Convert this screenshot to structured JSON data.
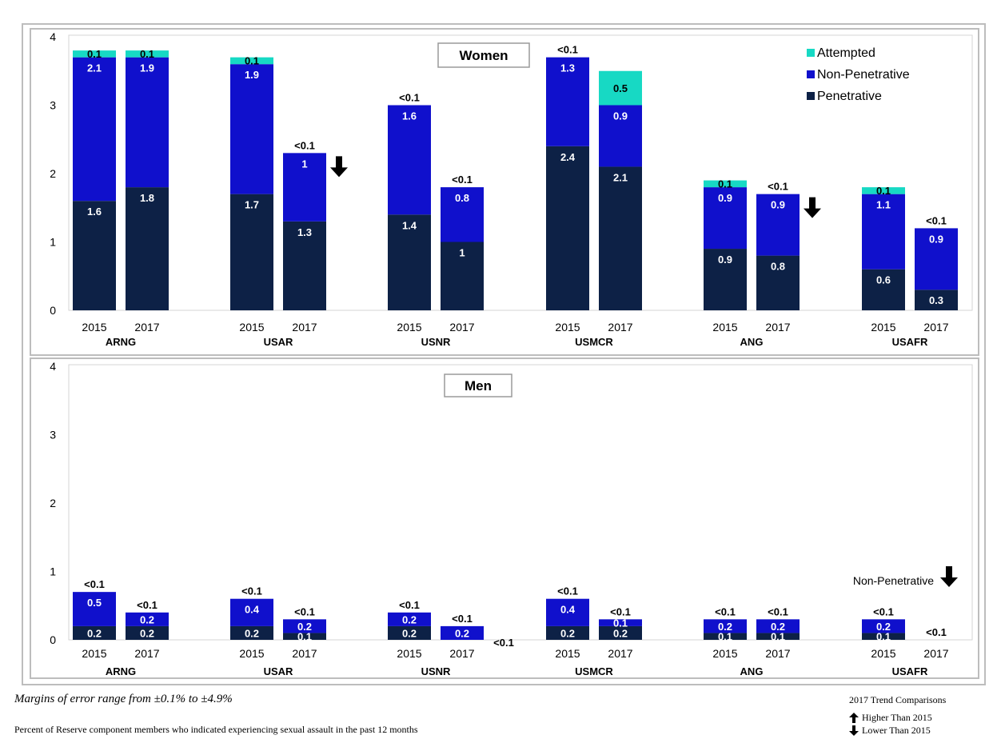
{
  "colors": {
    "attempted": "#17d9c4",
    "non_penetrative": "#1010cc",
    "penetrative": "#0d2146",
    "border": "#bdbdbd",
    "arrow": "#000000"
  },
  "chart_data": [
    {
      "type": "bar",
      "stacked": true,
      "panel_label": "Women",
      "ylim": [
        0,
        4
      ],
      "yticks": [
        "0",
        "1",
        "2",
        "3",
        "4"
      ],
      "legend": {
        "placement": "top-right",
        "entries": [
          {
            "key": "attempted",
            "label": "Attempted"
          },
          {
            "key": "non_penetrative",
            "label": "Non-Penetrative"
          },
          {
            "key": "penetrative",
            "label": "Penetrative"
          }
        ]
      },
      "groups": [
        {
          "name": "ARNG",
          "bars": [
            {
              "year": "2015",
              "values": {
                "penetrative": 1.6,
                "non_penetrative": 2.1,
                "attempted": 0.1
              },
              "labels": {
                "penetrative": "1.6",
                "non_penetrative": "2.1",
                "attempted": "0.1"
              },
              "arrow": ""
            },
            {
              "year": "2017",
              "values": {
                "penetrative": 1.8,
                "non_penetrative": 1.9,
                "attempted": 0.1
              },
              "labels": {
                "penetrative": "1.8",
                "non_penetrative": "1.9",
                "attempted": "0.1"
              },
              "arrow": ""
            }
          ]
        },
        {
          "name": "USAR",
          "bars": [
            {
              "year": "2015",
              "values": {
                "penetrative": 1.7,
                "non_penetrative": 1.9,
                "attempted": 0.1
              },
              "labels": {
                "penetrative": "1.7",
                "non_penetrative": "1.9",
                "attempted": "0.1"
              },
              "arrow": ""
            },
            {
              "year": "2017",
              "values": {
                "penetrative": 1.3,
                "non_penetrative": 1.0,
                "attempted": 0.0
              },
              "labels": {
                "penetrative": "1.3",
                "non_penetrative": "1",
                "attempted": "<0.1"
              },
              "arrow": "down"
            }
          ]
        },
        {
          "name": "USNR",
          "bars": [
            {
              "year": "2015",
              "values": {
                "penetrative": 1.4,
                "non_penetrative": 1.6,
                "attempted": 0.0
              },
              "labels": {
                "penetrative": "1.4",
                "non_penetrative": "1.6",
                "attempted": "<0.1"
              },
              "arrow": ""
            },
            {
              "year": "2017",
              "values": {
                "penetrative": 1.0,
                "non_penetrative": 0.8,
                "attempted": 0.0
              },
              "labels": {
                "penetrative": "1",
                "non_penetrative": "0.8",
                "attempted": "<0.1"
              },
              "arrow": ""
            }
          ]
        },
        {
          "name": "USMCR",
          "bars": [
            {
              "year": "2015",
              "values": {
                "penetrative": 2.4,
                "non_penetrative": 1.3,
                "attempted": 0.0
              },
              "labels": {
                "penetrative": "2.4",
                "non_penetrative": "1.3",
                "attempted": "<0.1"
              },
              "arrow": ""
            },
            {
              "year": "2017",
              "values": {
                "penetrative": 2.1,
                "non_penetrative": 0.9,
                "attempted": 0.5
              },
              "labels": {
                "penetrative": "2.1",
                "non_penetrative": "0.9",
                "attempted": "0.5"
              },
              "arrow": ""
            }
          ]
        },
        {
          "name": "ANG",
          "bars": [
            {
              "year": "2015",
              "values": {
                "penetrative": 0.9,
                "non_penetrative": 0.9,
                "attempted": 0.1
              },
              "labels": {
                "penetrative": "0.9",
                "non_penetrative": "0.9",
                "attempted": "0.1"
              },
              "arrow": ""
            },
            {
              "year": "2017",
              "values": {
                "penetrative": 0.8,
                "non_penetrative": 0.9,
                "attempted": 0.0
              },
              "labels": {
                "penetrative": "0.8",
                "non_penetrative": "0.9",
                "attempted": "<0.1"
              },
              "arrow": "down"
            }
          ]
        },
        {
          "name": "USAFR",
          "bars": [
            {
              "year": "2015",
              "values": {
                "penetrative": 0.6,
                "non_penetrative": 1.1,
                "attempted": 0.1
              },
              "labels": {
                "penetrative": "0.6",
                "non_penetrative": "1.1",
                "attempted": "0.1"
              },
              "arrow": ""
            },
            {
              "year": "2017",
              "values": {
                "penetrative": 0.3,
                "non_penetrative": 0.9,
                "attempted": 0.0
              },
              "labels": {
                "penetrative": "0.3",
                "non_penetrative": "0.9",
                "attempted": "<0.1"
              },
              "arrow": ""
            }
          ]
        }
      ]
    },
    {
      "type": "bar",
      "stacked": true,
      "panel_label": "Men",
      "ylim": [
        0,
        4
      ],
      "yticks": [
        "0",
        "1",
        "2",
        "3",
        "4"
      ],
      "annotation": {
        "text": "Non-Penetrative",
        "arrow": "down"
      },
      "groups": [
        {
          "name": "ARNG",
          "bars": [
            {
              "year": "2015",
              "values": {
                "penetrative": 0.2,
                "non_penetrative": 0.5,
                "attempted": 0.0
              },
              "labels": {
                "penetrative": "0.2",
                "non_penetrative": "0.5",
                "attempted": "<0.1"
              }
            },
            {
              "year": "2017",
              "values": {
                "penetrative": 0.2,
                "non_penetrative": 0.2,
                "attempted": 0.0
              },
              "labels": {
                "penetrative": "0.2",
                "non_penetrative": "0.2",
                "attempted": "<0.1"
              }
            }
          ]
        },
        {
          "name": "USAR",
          "bars": [
            {
              "year": "2015",
              "values": {
                "penetrative": 0.2,
                "non_penetrative": 0.4,
                "attempted": 0.0
              },
              "labels": {
                "penetrative": "0.2",
                "non_penetrative": "0.4",
                "attempted": "<0.1"
              }
            },
            {
              "year": "2017",
              "values": {
                "penetrative": 0.1,
                "non_penetrative": 0.2,
                "attempted": 0.0
              },
              "labels": {
                "penetrative": "0.1",
                "non_penetrative": "0.2",
                "attempted": "<0.1"
              }
            }
          ]
        },
        {
          "name": "USNR",
          "bars": [
            {
              "year": "2015",
              "values": {
                "penetrative": 0.2,
                "non_penetrative": 0.2,
                "attempted": 0.0
              },
              "labels": {
                "penetrative": "0.2",
                "non_penetrative": "0.2",
                "attempted": "<0.1"
              }
            },
            {
              "year": "2017",
              "values": {
                "penetrative": 0.0,
                "non_penetrative": 0.2,
                "attempted": 0.0
              },
              "labels": {
                "penetrative": "<0.1",
                "non_penetrative": "0.2",
                "attempted": "<0.1"
              }
            }
          ]
        },
        {
          "name": "USMCR",
          "bars": [
            {
              "year": "2015",
              "values": {
                "penetrative": 0.2,
                "non_penetrative": 0.4,
                "attempted": 0.0
              },
              "labels": {
                "penetrative": "0.2",
                "non_penetrative": "0.4",
                "attempted": "<0.1"
              }
            },
            {
              "year": "2017",
              "values": {
                "penetrative": 0.2,
                "non_penetrative": 0.1,
                "attempted": 0.0
              },
              "labels": {
                "penetrative": "0.2",
                "non_penetrative": "0.1",
                "attempted": "<0.1"
              }
            }
          ]
        },
        {
          "name": "ANG",
          "bars": [
            {
              "year": "2015",
              "values": {
                "penetrative": 0.1,
                "non_penetrative": 0.2,
                "attempted": 0.0
              },
              "labels": {
                "penetrative": "0.1",
                "non_penetrative": "0.2",
                "attempted": "<0.1"
              }
            },
            {
              "year": "2017",
              "values": {
                "penetrative": 0.1,
                "non_penetrative": 0.2,
                "attempted": 0.0
              },
              "labels": {
                "penetrative": "0.1",
                "non_penetrative": "0.2",
                "attempted": "<0.1"
              }
            }
          ]
        },
        {
          "name": "USAFR",
          "bars": [
            {
              "year": "2015",
              "values": {
                "penetrative": 0.1,
                "non_penetrative": 0.2,
                "attempted": 0.0
              },
              "labels": {
                "penetrative": "0.1",
                "non_penetrative": "0.2",
                "attempted": "<0.1"
              }
            },
            {
              "year": "2017",
              "values": {
                "penetrative": 0.0,
                "non_penetrative": 0.0,
                "attempted": 0.0
              },
              "labels": {
                "penetrative": "",
                "non_penetrative": "",
                "attempted": "<0.1"
              }
            }
          ]
        }
      ]
    }
  ],
  "footer": {
    "margins_note": "Margins of error range from ±0.1% to ±4.9%",
    "caption": "Percent of Reserve component members who indicated experiencing  sexual assault in the past 12 months",
    "trend_title": "2017 Trend Comparisons",
    "trend_higher": "Higher  Than 2015",
    "trend_lower": "Lower Than 2015"
  }
}
